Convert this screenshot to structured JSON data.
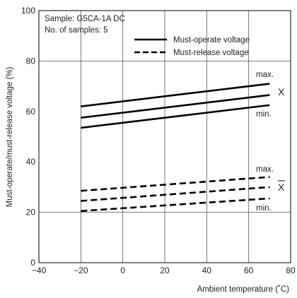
{
  "chart_data": {
    "type": "line",
    "title": "",
    "xlabel": "Ambient temperature (˚C)",
    "ylabel": "Must-operate/must-release voltage (%)",
    "xlim": [
      -40,
      80
    ],
    "ylim": [
      0,
      100
    ],
    "x_ticks": [
      -40,
      -20,
      0,
      20,
      40,
      60,
      80
    ],
    "x_tick_labels": [
      "−40",
      "−20",
      "0",
      "20",
      "40",
      "60",
      "80"
    ],
    "y_ticks": [
      0,
      20,
      40,
      60,
      80,
      100
    ],
    "y_tick_labels": [
      "0",
      "20",
      "40",
      "60",
      "80",
      "100"
    ],
    "grid": "vertical lines at x ticks; horizontal lines at y = 20 and y = 80",
    "info_lines": [
      "Sample: G5CA-1A DC",
      "No. of samples: 5"
    ],
    "legend": [
      {
        "label": "Must-operate voltage",
        "style": "solid"
      },
      {
        "label": "Must-release voltage",
        "style": "dashed"
      }
    ],
    "series": [
      {
        "group": "Must-operate voltage",
        "stat": "max.",
        "style": "solid",
        "x": [
          -20,
          70
        ],
        "y": [
          62,
          71
        ]
      },
      {
        "group": "Must-operate voltage",
        "stat": "X",
        "style": "solid",
        "x": [
          -20,
          70
        ],
        "y": [
          57.5,
          66.5
        ]
      },
      {
        "group": "Must-operate voltage",
        "stat": "min.",
        "style": "solid",
        "x": [
          -20,
          70
        ],
        "y": [
          53.5,
          62.5
        ]
      },
      {
        "group": "Must-release voltage",
        "stat": "max.",
        "style": "dashed",
        "x": [
          -20,
          70
        ],
        "y": [
          28.5,
          34
        ]
      },
      {
        "group": "Must-release voltage",
        "stat": "X",
        "style": "dashed",
        "x": [
          -20,
          70
        ],
        "y": [
          24.5,
          30
        ]
      },
      {
        "group": "Must-release voltage",
        "stat": "min.",
        "style": "dashed",
        "x": [
          -20,
          70
        ],
        "y": [
          20.5,
          25.5
        ]
      }
    ],
    "annotations": [
      "max.",
      "X",
      "min.",
      "max.",
      "X",
      "min."
    ]
  }
}
